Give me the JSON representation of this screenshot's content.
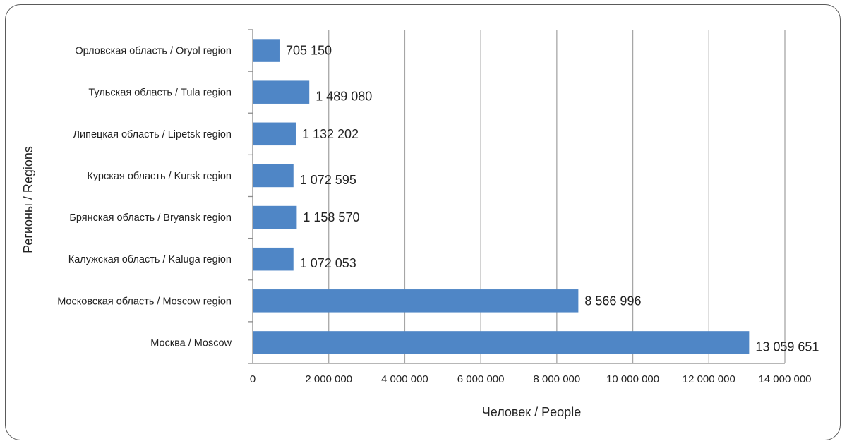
{
  "chart_data": {
    "type": "bar",
    "orientation": "horizontal",
    "categories": [
      "Орловская область / Oryol region",
      "Тульская область / Tula region",
      "Липецкая область / Lipetsk region",
      "Курская область / Kursk region",
      "Брянская область / Bryansk region",
      "Калужская область / Kaluga region",
      "Московская область / Moscow region",
      "Москва / Moscow"
    ],
    "values": [
      705150,
      1489080,
      1132202,
      1072595,
      1158570,
      1072053,
      8566996,
      13059651
    ],
    "data_labels": [
      "705 150",
      "1 489 080",
      "1 132 202",
      "1 072 595",
      "1 158 570",
      "1 072 053",
      "8 566 996",
      "13 059 651"
    ],
    "xlabel": "Человек / People",
    "ylabel": "Регионы / Regions",
    "xlim": [
      0,
      14000000
    ],
    "xticks": [
      0,
      2000000,
      4000000,
      6000000,
      8000000,
      10000000,
      12000000,
      14000000
    ],
    "xtick_labels": [
      "0",
      "2 000 000",
      "4 000 000",
      "6 000 000",
      "8 000 000",
      "10 000 000",
      "12 000 000",
      "14 000 000"
    ],
    "grid": true,
    "bar_color": "#4f86c6",
    "grid_color": "#a6a6a6"
  }
}
